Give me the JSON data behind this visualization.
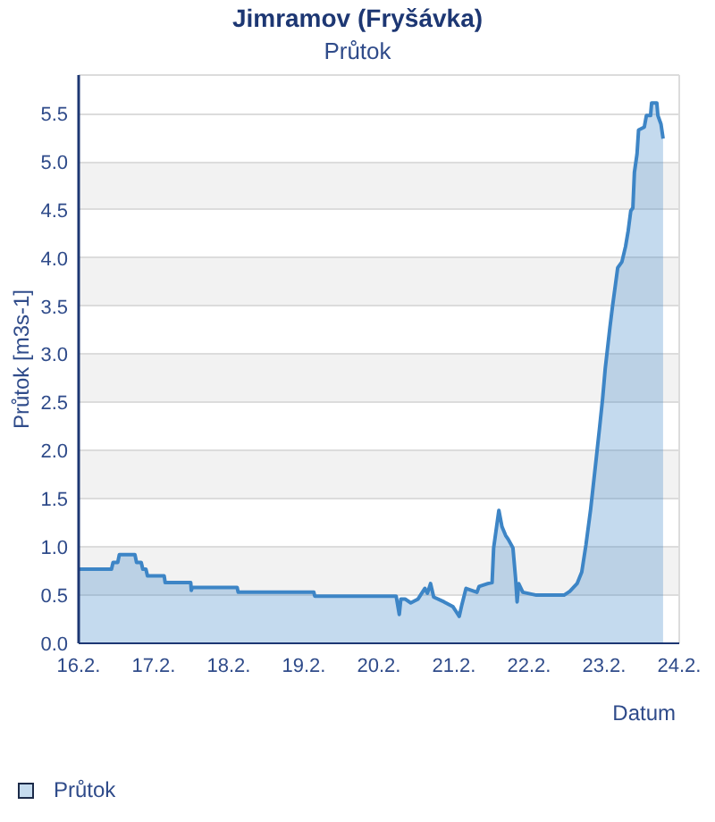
{
  "chart_data": {
    "type": "area",
    "title": "Jimramov (Fryšávka)",
    "subtitle": "Průtok",
    "xlabel": "Datum",
    "ylabel": "Průtok [m3s-1]",
    "x": [
      "--02-16T00:00",
      "--02-16T10:30",
      "--02-16T11:00",
      "--02-16T12:30",
      "--02-16T13:00",
      "--02-16T18:00",
      "--02-16T18:30",
      "--02-16T20:00",
      "--02-16T20:30",
      "--02-16T21:30",
      "--02-16T22:00",
      "--02-17T03:20",
      "--02-17T03:40",
      "--02-17T11:50",
      "--02-17T12:00",
      "--02-17T12:20",
      "--02-18T02:40",
      "--02-18T03:00",
      "--02-19T03:10",
      "--02-19T03:30",
      "--02-20T05:30",
      "--02-20T06:30",
      "--02-20T07:00",
      "--02-20T08:20",
      "--02-20T10:10",
      "--02-20T12:30",
      "--02-20T14:40",
      "--02-20T15:30",
      "--02-20T16:30",
      "--02-20T17:30",
      "--02-20T20:50",
      "--02-20T23:40",
      "--02-21T01:40",
      "--02-21T02:30",
      "--02-21T03:50",
      "--02-21T07:20",
      "--02-21T08:00",
      "--02-21T10:50",
      "--02-21T12:10",
      "--02-21T12:40",
      "--02-21T14:20",
      "--02-21T15:20",
      "--02-21T16:30",
      "--02-21T17:20",
      "--02-21T18:50",
      "--02-21T19:40",
      "--02-21T20:10",
      "--02-21T20:40",
      "--02-21T22:00",
      "--02-22T02:20",
      "--02-22T11:10",
      "--02-22T13:00",
      "--02-22T15:20",
      "--02-22T16:50",
      "--02-22T18:10",
      "--02-22T19:40",
      "--02-22T21:40",
      "--02-22T22:30",
      "--02-22T23:30",
      "--02-23T00:20",
      "--02-23T01:00",
      "--02-23T01:50",
      "--02-23T02:40",
      "--02-23T03:20",
      "--02-23T04:20",
      "--02-23T05:40",
      "--02-23T06:50",
      "--02-23T07:40",
      "--02-23T08:30",
      "--02-23T09:10",
      "--02-23T09:40",
      "--02-23T10:30",
      "--02-23T11:00",
      "--02-23T12:50",
      "--02-23T13:30",
      "--02-23T14:50",
      "--02-23T15:10",
      "--02-23T16:50",
      "--02-23T17:10",
      "--02-23T18:10",
      "--02-23T18:50"
    ],
    "series": [
      {
        "name": "Průtok",
        "color": "#3d85c6",
        "values": [
          0.77,
          0.77,
          0.84,
          0.84,
          0.92,
          0.92,
          0.84,
          0.84,
          0.77,
          0.77,
          0.7,
          0.7,
          0.63,
          0.63,
          0.55,
          0.58,
          0.58,
          0.53,
          0.53,
          0.49,
          0.49,
          0.3,
          0.46,
          0.46,
          0.42,
          0.46,
          0.57,
          0.52,
          0.62,
          0.48,
          0.43,
          0.38,
          0.28,
          0.4,
          0.57,
          0.53,
          0.59,
          0.62,
          0.63,
          0.99,
          1.38,
          1.21,
          1.12,
          1.08,
          0.99,
          0.68,
          0.43,
          0.62,
          0.53,
          0.5,
          0.5,
          0.54,
          0.62,
          0.74,
          1.02,
          1.39,
          1.98,
          2.23,
          2.54,
          2.85,
          3.04,
          3.28,
          3.5,
          3.66,
          3.9,
          3.96,
          4.12,
          4.28,
          4.49,
          4.52,
          4.89,
          5.08,
          5.33,
          5.36,
          5.48,
          5.48,
          5.61,
          5.61,
          5.48,
          5.39,
          5.24
        ]
      }
    ],
    "xlim": [
      "--02-16",
      "--02-24"
    ],
    "xticks": [
      {
        "value": "--02-16",
        "label": "16.2."
      },
      {
        "value": "--02-17",
        "label": "17.2."
      },
      {
        "value": "--02-18",
        "label": "18.2."
      },
      {
        "value": "--02-19",
        "label": "19.2."
      },
      {
        "value": "--02-20",
        "label": "20.2."
      },
      {
        "value": "--02-21",
        "label": "21.2."
      },
      {
        "value": "--02-22",
        "label": "22.2."
      },
      {
        "value": "--02-23",
        "label": "23.2."
      },
      {
        "value": "--02-24",
        "label": "24.2."
      }
    ],
    "ylim": [
      0,
      5.9
    ],
    "yticks": [
      {
        "value": 0,
        "label": "0.0"
      },
      0.5,
      {
        "value": 1,
        "label": "1.0"
      },
      1.5,
      {
        "value": 2,
        "label": "2.0"
      },
      2.5,
      {
        "value": 3,
        "label": "3.0"
      },
      3.5,
      {
        "value": 4,
        "label": "4.0"
      },
      4.5,
      {
        "value": 5,
        "label": "5.0"
      },
      5.5
    ],
    "grid": "y",
    "legend": "bottom left"
  }
}
